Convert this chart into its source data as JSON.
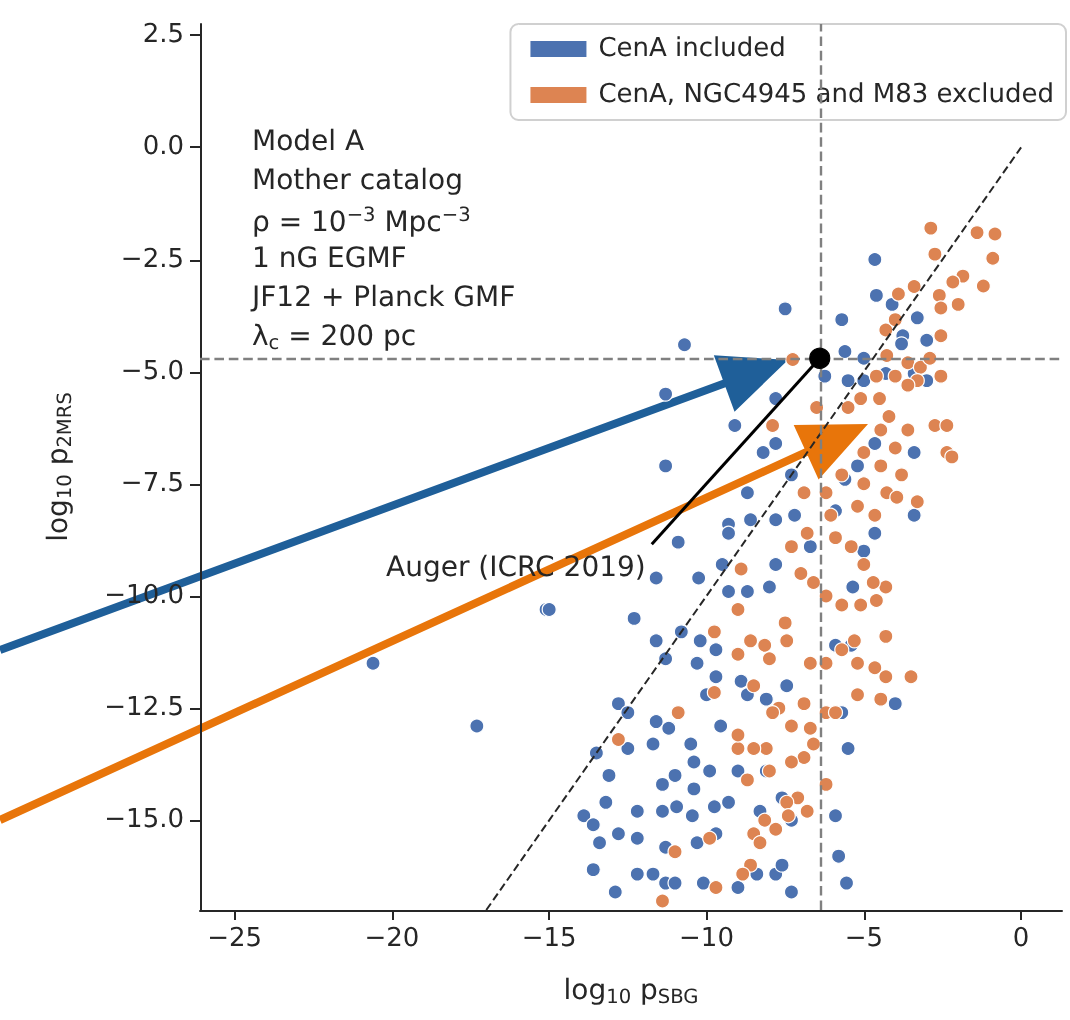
{
  "chart_data": {
    "type": "scatter",
    "xlabel": "log$_{10}$ p$_{SBG}$",
    "ylabel": "log$_{10}$ p$_{2MRS}$",
    "xlim": [
      -26.1,
      1.3
    ],
    "ylim": [
      -17,
      2.75
    ],
    "xticks": [
      {
        "value": -25,
        "label": "−25"
      },
      {
        "value": -20,
        "label": "−20"
      },
      {
        "value": -15,
        "label": "−15"
      },
      {
        "value": -10,
        "label": "−10"
      },
      {
        "value": -5,
        "label": "−5"
      },
      {
        "value": 0,
        "label": "0"
      }
    ],
    "yticks": [
      {
        "value": 2.5,
        "label": "2.5"
      },
      {
        "value": 0,
        "label": "0.0"
      },
      {
        "value": -2.5,
        "label": "−2.5"
      },
      {
        "value": -5,
        "label": "−5.0"
      },
      {
        "value": -7.5,
        "label": "−7.5"
      },
      {
        "value": -10,
        "label": "−10.0"
      },
      {
        "value": -12.5,
        "label": "−12.5"
      },
      {
        "value": -15,
        "label": "−15.0"
      }
    ],
    "grid": false,
    "legend": "top right",
    "marker": "circle",
    "series": [
      {
        "name": "CenA included",
        "color": "#4c72b0",
        "x": [
          -4.65,
          -4.6,
          -4.1,
          -3.3,
          -3.0,
          -3.76,
          -3.8,
          -5.7,
          -7.5,
          -10.7,
          -5.6,
          -5.0,
          -6.24,
          -5.5,
          -5.0,
          -4.3,
          -3.4,
          -3.0,
          -11.3,
          -9.1,
          -7.8,
          -8.2,
          -7.8,
          -7.3,
          -8.7,
          -11.3,
          -4.65,
          -3.4,
          -3.4,
          -5.2,
          -5.6,
          -5.9,
          -7.8,
          -7.2,
          -9.3,
          -9.3,
          -8.6,
          -10.9,
          -6.7,
          -5.0,
          -4.65,
          -15.1,
          -12.3,
          -10.25,
          -9.5,
          -9.3,
          -8.7,
          -8.0,
          -7.8,
          -11.6,
          -10.8,
          -10.2,
          -9.7,
          -10.3,
          -9.7,
          -11.3,
          -8.9,
          -8.7,
          -8.1,
          -7.45,
          -10.0,
          -12.8,
          -12.5,
          -11.6,
          -11.2,
          -9.55,
          -10.5,
          -13.5,
          -12.5,
          -11.7,
          -10.4,
          -9.9,
          -9.0,
          -8.1,
          -13.1,
          -11.0,
          -11.4,
          -10.4,
          -13.9,
          -13.2,
          -12.2,
          -11.4,
          -10.95,
          -10.45,
          -9.75,
          -9.3,
          -8.3,
          -7.6,
          -7.3,
          -5.9,
          -13.6,
          -12.8,
          -13.4,
          -12.2,
          -11.3,
          -10.3,
          -9.7,
          -8.4,
          -7.8,
          -7.6,
          -13.6,
          -12.2,
          -11.7,
          -11.3,
          -11.0,
          -12.9,
          -10.1,
          -9.0,
          -7.3,
          -5.8,
          -5.55,
          -4.0,
          -5.5,
          -5.9,
          -5.7,
          -5.4,
          -5.35,
          -11.6,
          -17.3,
          -20.6,
          -15.0
        ],
        "values": [
          -2.5,
          -3.3,
          -3.5,
          -3.8,
          -4.3,
          -4.2,
          -4.38,
          -3.84,
          -3.6,
          -4.4,
          -4.55,
          -4.7,
          -5.1,
          -5.2,
          -5.2,
          -5.04,
          -5.04,
          -5.2,
          -5.5,
          -6.2,
          -5.6,
          -6.8,
          -6.6,
          -7.3,
          -7.7,
          -7.1,
          -6.6,
          -6.8,
          -8.2,
          -7.1,
          -7.4,
          -8.1,
          -8.3,
          -8.2,
          -8.4,
          -8.6,
          -8.3,
          -8.8,
          -8.9,
          -9.0,
          -8.6,
          -10.3,
          -10.5,
          -9.6,
          -9.3,
          -9.9,
          -9.9,
          -9.8,
          -9.3,
          -11.0,
          -10.8,
          -11.0,
          -11.2,
          -11.5,
          -11.8,
          -11.4,
          -11.9,
          -12.2,
          -12.3,
          -12.0,
          -12.2,
          -12.4,
          -12.6,
          -12.8,
          -12.95,
          -12.9,
          -13.3,
          -13.5,
          -13.4,
          -13.3,
          -13.7,
          -13.9,
          -13.9,
          -13.9,
          -14.0,
          -14.0,
          -14.2,
          -14.3,
          -14.9,
          -14.6,
          -14.8,
          -14.8,
          -14.7,
          -14.9,
          -14.7,
          -14.6,
          -14.8,
          -14.5,
          -15.0,
          -14.9,
          -15.1,
          -15.3,
          -15.5,
          -15.4,
          -15.6,
          -15.5,
          -15.3,
          -16.2,
          -16.2,
          -16.0,
          -16.1,
          -16.2,
          -16.2,
          -16.4,
          -16.4,
          -16.6,
          -16.4,
          -16.5,
          -16.6,
          -15.8,
          -16.4,
          -12.4,
          -13.4,
          -11.1,
          -12.6,
          -11.1,
          -9.8,
          -9.6,
          -12.9,
          -11.5,
          -10.3
        ]
      },
      {
        "name": "CenA, NGC4945 and M83 excluded",
        "color": "#dd8452",
        "x": [
          -2.87,
          -1.4,
          -0.83,
          -2.74,
          -0.9,
          -1.85,
          -2.17,
          -1.2,
          -2.6,
          -2.0,
          -2.55,
          -2.55,
          -3.9,
          -3.4,
          -4.3,
          -4.0,
          -7.26,
          -4.27,
          -3.6,
          -3.2,
          -2.9,
          -2.55,
          -3.3,
          -4.0,
          -4.6,
          -3.6,
          -4.5,
          -5.1,
          -5.5,
          -4.2,
          -2.74,
          -2.36,
          -3.6,
          -4.46,
          -7.9,
          -6.5,
          -5.0,
          -4.0,
          -2.36,
          -2.2,
          -5.7,
          -4.46,
          -3.8,
          -5.0,
          -4.27,
          -6.9,
          -6.2,
          -5.2,
          -3.3,
          -3.95,
          -4.65,
          -6.05,
          -6.8,
          -5.9,
          -5.4,
          -7.3,
          -8.9,
          -9.75,
          -9.0,
          -8.6,
          -8.15,
          -7.45,
          -9.0,
          -8.5,
          -8.0,
          -7.5,
          -7.0,
          -6.6,
          -6.2,
          -5.7,
          -5.1,
          -4.6,
          -4.3,
          -5.0,
          -4.7,
          -4.3,
          -5.3,
          -5.7,
          -6.7,
          -6.2,
          -4.65,
          -4.3,
          -3.5,
          -4.46,
          -5.2,
          -6.2,
          -5.9,
          -6.9,
          -7.7,
          -7.9,
          -7.3,
          -6.7,
          -6.6,
          -6.9,
          -7.3,
          -8.1,
          -8.5,
          -9.0,
          -9.0,
          -8.0,
          -8.7,
          -6.2,
          -7.1,
          -7.45,
          -6.8,
          -7.4,
          -8.15,
          -7.8,
          -8.5,
          -8.3,
          -9.9,
          -8.6,
          -8.85,
          -9.7,
          -11.4,
          -11.0,
          -12.8,
          -10.9,
          -9.75,
          -5.2
        ],
        "values": [
          -1.8,
          -1.9,
          -1.93,
          -2.38,
          -2.47,
          -2.87,
          -3.0,
          -3.09,
          -3.3,
          -3.5,
          -3.58,
          -4.2,
          -3.27,
          -3.1,
          -4.07,
          -3.84,
          -4.73,
          -4.64,
          -4.8,
          -4.9,
          -4.7,
          -5.1,
          -5.2,
          -5.1,
          -5.1,
          -5.3,
          -5.6,
          -5.6,
          -5.8,
          -6.0,
          -6.2,
          -6.2,
          -6.3,
          -6.3,
          -6.2,
          -5.8,
          -6.8,
          -6.7,
          -6.8,
          -6.9,
          -7.3,
          -7.1,
          -7.3,
          -7.5,
          -7.7,
          -7.7,
          -7.7,
          -8.0,
          -7.9,
          -7.8,
          -8.2,
          -8.2,
          -8.6,
          -8.7,
          -8.9,
          -8.9,
          -9.4,
          -10.8,
          -10.3,
          -11.0,
          -11.1,
          -11.0,
          -11.3,
          -12.0,
          -11.4,
          -10.6,
          -9.5,
          -9.7,
          -10.0,
          -10.2,
          -10.2,
          -10.1,
          -9.8,
          -9.3,
          -9.7,
          -10.9,
          -11.0,
          -11.2,
          -11.5,
          -11.5,
          -11.6,
          -11.8,
          -11.8,
          -12.3,
          -12.2,
          -12.6,
          -12.6,
          -12.4,
          -12.5,
          -12.6,
          -12.9,
          -12.95,
          -13.3,
          -13.6,
          -13.7,
          -13.4,
          -13.4,
          -13.4,
          -13.1,
          -13.9,
          -14.1,
          -14.2,
          -14.5,
          -14.6,
          -14.8,
          -14.9,
          -15.0,
          -15.2,
          -15.3,
          -15.5,
          -15.4,
          -16.0,
          -16.2,
          -16.5,
          -16.8,
          -15.7,
          -13.2,
          -12.6,
          -12.15,
          -11.5
        ]
      },
      {
        "type": "line",
        "color": "#262626",
        "line_style": "dashed",
        "marker": "none",
        "x": [
          -17,
          0
        ],
        "values": [
          -17,
          0
        ]
      },
      {
        "color": "#000000",
        "x": [
          -6.4
        ],
        "values": [
          -4.7
        ]
      }
    ],
    "ref_lines": [
      {
        "axis": "x",
        "value": -6.4,
        "color": "#808080",
        "line_style": "dashed"
      },
      {
        "axis": "y",
        "value": -4.7,
        "color": "#808080",
        "line_style": "dashed"
      }
    ],
    "annotations": [
      "Model A",
      "Mother catalog",
      "ρ = 10$^{−3}$ Mpc$^{−3}$",
      "1 nG EGMF",
      "JF12 + Planck GMF",
      "λ$_{c}$ = 200 pc",
      {
        "text": "Auger (ICRC 2019)",
        "x": -6.4,
        "y": -4.7
      }
    ]
  }
}
